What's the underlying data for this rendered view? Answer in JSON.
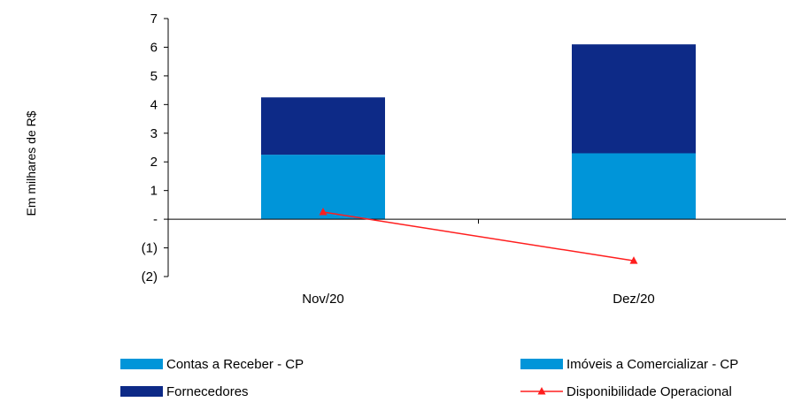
{
  "chart_data": {
    "type": "bar",
    "stacked": true,
    "categories": [
      "Nov/20",
      "Dez/20"
    ],
    "ylabel": "Em milhares de R$",
    "ylim": [
      -2,
      7
    ],
    "y_ticks": [
      {
        "value": 7,
        "label": "7"
      },
      {
        "value": 6,
        "label": "6"
      },
      {
        "value": 5,
        "label": "5"
      },
      {
        "value": 4,
        "label": "4"
      },
      {
        "value": 3,
        "label": "3"
      },
      {
        "value": 2,
        "label": "2"
      },
      {
        "value": 1,
        "label": "1"
      },
      {
        "value": 0,
        "label": "-"
      },
      {
        "value": -1,
        "label": "(1)"
      },
      {
        "value": -2,
        "label": "(2)"
      }
    ],
    "grid": false,
    "legend_position": "bottom",
    "series": [
      {
        "name": "Contas a Receber  - CP",
        "kind": "bar",
        "color": "#0095d9",
        "values": [
          2.25,
          2.3
        ]
      },
      {
        "name": "Imóveis a Comercializar - CP",
        "kind": "bar",
        "color": "#0095d9",
        "values": [
          0,
          0
        ]
      },
      {
        "name": "Fornecedores",
        "kind": "bar",
        "color": "#0d2a87",
        "values": [
          2.0,
          3.8
        ]
      },
      {
        "name": "Disponibilidade Operacional",
        "kind": "line",
        "color": "#ff1e1e",
        "marker": "triangle",
        "values": [
          0.25,
          -1.45
        ]
      }
    ]
  }
}
